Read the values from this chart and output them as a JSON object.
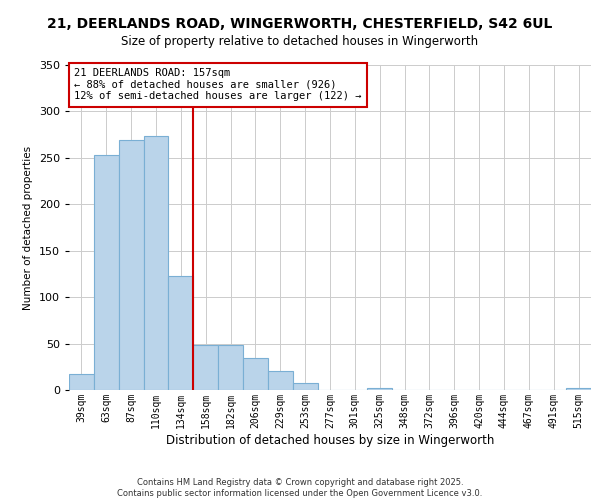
{
  "title": "21, DEERLANDS ROAD, WINGERWORTH, CHESTERFIELD, S42 6UL",
  "subtitle": "Size of property relative to detached houses in Wingerworth",
  "xlabel": "Distribution of detached houses by size in Wingerworth",
  "ylabel": "Number of detached properties",
  "categories": [
    "39sqm",
    "63sqm",
    "87sqm",
    "110sqm",
    "134sqm",
    "158sqm",
    "182sqm",
    "206sqm",
    "229sqm",
    "253sqm",
    "277sqm",
    "301sqm",
    "325sqm",
    "348sqm",
    "372sqm",
    "396sqm",
    "420sqm",
    "444sqm",
    "467sqm",
    "491sqm",
    "515sqm"
  ],
  "values": [
    17,
    253,
    269,
    274,
    123,
    49,
    48,
    35,
    21,
    8,
    0,
    0,
    2,
    0,
    0,
    0,
    0,
    0,
    0,
    0,
    2
  ],
  "bar_color": "#bad4ea",
  "bar_edge_color": "#7aafd4",
  "ylim": [
    0,
    350
  ],
  "yticks": [
    0,
    50,
    100,
    150,
    200,
    250,
    300,
    350
  ],
  "annotation_line1": "21 DEERLANDS ROAD: 157sqm",
  "annotation_line2": "← 88% of detached houses are smaller (926)",
  "annotation_line3": "12% of semi-detached houses are larger (122) →",
  "vline_x_index": 5,
  "vline_color": "#cc0000",
  "box_color": "#cc0000",
  "footer_line1": "Contains HM Land Registry data © Crown copyright and database right 2025.",
  "footer_line2": "Contains public sector information licensed under the Open Government Licence v3.0.",
  "background_color": "#ffffff",
  "grid_color": "#cccccc"
}
